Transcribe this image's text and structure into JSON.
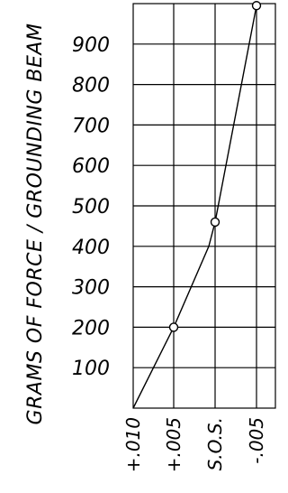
{
  "chart_data": {
    "type": "line",
    "title": "",
    "ylabel": "GRAMS OF FORCE / GROUNDING BEAM",
    "xlabel": "",
    "x_categories": [
      "+.010",
      "+.005",
      "S.O.S.",
      "-.005"
    ],
    "y_ticks": [
      "100",
      "200",
      "300",
      "400",
      "500",
      "600",
      "700",
      "800",
      "900"
    ],
    "ylim": [
      0,
      1000
    ],
    "grid": true,
    "series": [
      {
        "name": "",
        "points": [
          {
            "x": "+.010",
            "y": 0
          },
          {
            "x": "+.005",
            "y": 200
          },
          {
            "x": "between +.005 and S.O.S.",
            "y": 400
          },
          {
            "x": "S.O.S.",
            "y": 460
          },
          {
            "x": "-.005",
            "y": 995
          }
        ],
        "marked": [
          {
            "x": "+.005",
            "y": 200
          },
          {
            "x": "S.O.S.",
            "y": 460
          },
          {
            "x": "-.005",
            "y": 995
          }
        ]
      }
    ]
  }
}
